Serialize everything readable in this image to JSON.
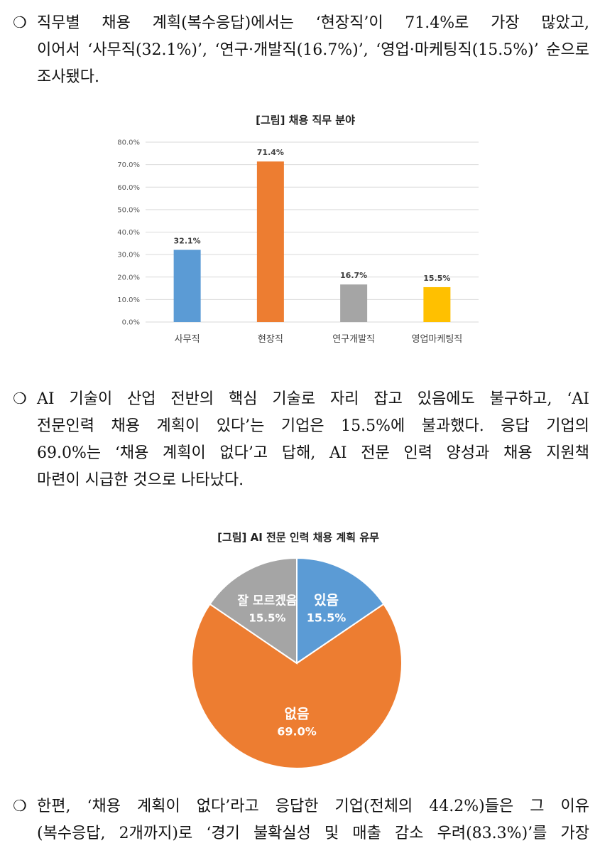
{
  "bullet_symbol": "❍",
  "paragraph1": {
    "lines": [
      "직무별 채용 계획(복수응답)에서는 ‘현장직’이 71.4%로 가장 많았고,",
      "이어서 ‘사무직(32.1%)’, ‘연구·개발직(16.7%)’, ‘영업·마케팅직(15.5%)’ 순으로",
      "조사됐다."
    ]
  },
  "chart1": {
    "title": "[그림] 채용 직무 분야"
  },
  "chart_data": [
    {
      "type": "bar",
      "title": "[그림] 채용 직무 분야",
      "categories": [
        "사무직",
        "현장직",
        "연구개발직",
        "영업마케팅직"
      ],
      "values": [
        32.1,
        71.4,
        16.7,
        15.5
      ],
      "data_labels": [
        "32.1%",
        "71.4%",
        "16.7%",
        "15.5%"
      ],
      "colors": [
        "#5B9BD5",
        "#ED7D31",
        "#A5A5A5",
        "#FFC000"
      ],
      "ylim": [
        0,
        80
      ],
      "yticks": [
        "0.0%",
        "10.0%",
        "20.0%",
        "30.0%",
        "40.0%",
        "50.0%",
        "60.0%",
        "70.0%",
        "80.0%"
      ],
      "grid": true,
      "xlabel": "",
      "ylabel": ""
    },
    {
      "type": "pie",
      "title": "[그림] AI 전문 인력 채용 계획 유무",
      "categories": [
        "있음",
        "없음",
        "잘 모르겠음"
      ],
      "values": [
        15.5,
        69.0,
        15.5
      ],
      "data_labels": [
        "15.5%",
        "69.0%",
        "15.5%"
      ],
      "colors": [
        "#5B9BD5",
        "#ED7D31",
        "#A5A5A5"
      ]
    }
  ],
  "paragraph2": {
    "lines": [
      "AI 기술이 산업 전반의 핵심 기술로 자리 잡고 있음에도 불구하고, ‘AI",
      "전문인력 채용 계획이 있다’는 기업은 15.5%에 불과했다. 응답 기업의",
      "69.0%는 ‘채용 계획이 없다’고 답해, AI 전문 인력 양성과 채용 지원책",
      "마련이 시급한 것으로 나타났다."
    ]
  },
  "chart2": {
    "title": "[그림] AI 전문 인력 채용 계획 유무"
  },
  "paragraph3": {
    "lines": [
      "한편, ‘채용 계획이 없다’라고 응답한 기업(전체의 44.2%)들은 그 이유",
      "(복수응답, 2개까지)로 ‘경기 불확실성 및 매출 감소 우려(83.3%)’를 가장"
    ]
  }
}
